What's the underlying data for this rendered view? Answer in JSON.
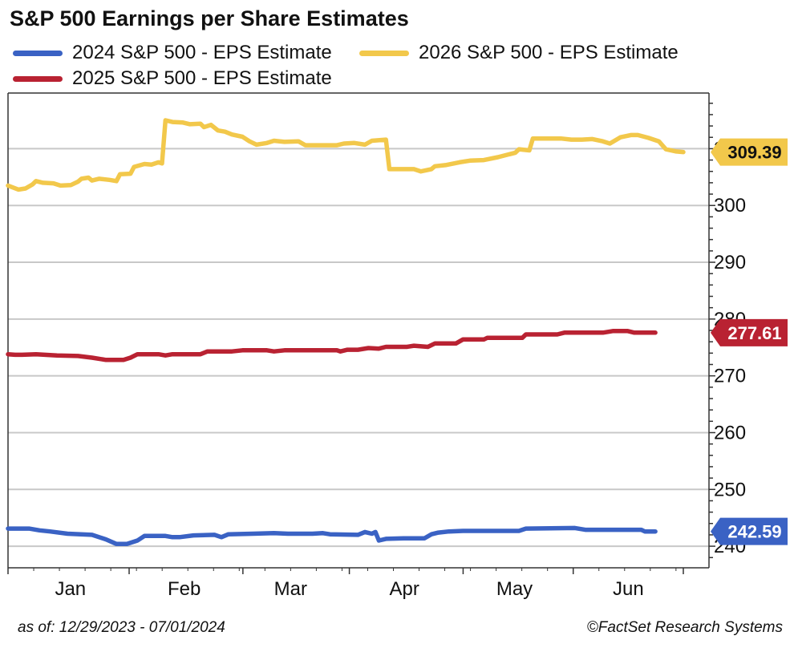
{
  "title": "S&P 500 Earnings per Share Estimates",
  "footer": {
    "date_range": "as of: 12/29/2023 - 07/01/2024",
    "source": "©FactSet Research Systems"
  },
  "colors": {
    "s2024": "#3a62c4",
    "s2025": "#b92232",
    "s2026": "#f2c84b",
    "grid": "#c8c8c8",
    "axis": "#333333"
  },
  "chart_data": {
    "type": "line",
    "title": "S&P 500 Earnings per Share Estimates",
    "xlabel": "",
    "ylabel": "",
    "x_range": [
      0,
      184
    ],
    "ylim": [
      236.2,
      319.8
    ],
    "yticks": [
      240,
      250,
      260,
      270,
      280,
      290,
      300,
      310
    ],
    "ytick_labels": [
      "240",
      "250",
      "260",
      "270",
      "280",
      "290",
      "300",
      "310"
    ],
    "xticks": [
      {
        "label": "Jan",
        "x": 17
      },
      {
        "label": "Feb",
        "x": 48
      },
      {
        "label": "Mar",
        "x": 77
      },
      {
        "label": "Apr",
        "x": 108
      },
      {
        "label": "May",
        "x": 138
      },
      {
        "label": "Jun",
        "x": 169
      }
    ],
    "month_boundaries": [
      0,
      33,
      64,
      93,
      124,
      154,
      184
    ],
    "grid": true,
    "series": [
      {
        "name": "2024 S&P 500 - EPS Estimate",
        "color_key": "s2024",
        "last_value": "242.59",
        "points": [
          [
            0,
            243.1
          ],
          [
            6,
            243.1
          ],
          [
            9,
            242.8
          ],
          [
            12,
            242.6
          ],
          [
            17,
            242.2
          ],
          [
            24,
            242.0
          ],
          [
            28,
            241.2
          ],
          [
            31,
            240.4
          ],
          [
            34,
            240.4
          ],
          [
            37,
            241.0
          ],
          [
            39,
            241.8
          ],
          [
            45,
            241.8
          ],
          [
            47,
            241.6
          ],
          [
            49,
            241.6
          ],
          [
            53,
            241.9
          ],
          [
            59,
            242.0
          ],
          [
            61,
            241.6
          ],
          [
            63,
            242.1
          ],
          [
            70,
            242.2
          ],
          [
            76,
            242.3
          ],
          [
            80,
            242.2
          ],
          [
            87,
            242.2
          ],
          [
            90,
            242.3
          ],
          [
            92,
            242.1
          ],
          [
            100,
            242.0
          ],
          [
            102,
            242.5
          ],
          [
            104,
            242.2
          ],
          [
            105,
            242.5
          ],
          [
            106,
            241.0
          ],
          [
            108,
            241.3
          ],
          [
            113,
            241.4
          ],
          [
            119,
            241.4
          ],
          [
            121,
            242.1
          ],
          [
            123,
            242.4
          ],
          [
            126,
            242.6
          ],
          [
            130,
            242.7
          ],
          [
            140,
            242.7
          ],
          [
            146,
            242.7
          ],
          [
            148,
            243.1
          ],
          [
            162,
            243.2
          ],
          [
            165,
            242.9
          ],
          [
            175,
            242.9
          ],
          [
            181,
            242.9
          ],
          [
            182,
            242.6
          ],
          [
            185,
            242.6
          ]
        ]
      },
      {
        "name": "2025 S&P 500 - EPS Estimate",
        "color_key": "s2025",
        "last_value": "277.61",
        "points": [
          [
            0,
            273.8
          ],
          [
            2,
            273.7
          ],
          [
            4,
            273.7
          ],
          [
            8,
            273.8
          ],
          [
            14,
            273.6
          ],
          [
            20,
            273.5
          ],
          [
            24,
            273.2
          ],
          [
            28,
            272.8
          ],
          [
            33,
            272.8
          ],
          [
            35,
            273.2
          ],
          [
            37,
            273.8
          ],
          [
            43,
            273.8
          ],
          [
            45,
            273.6
          ],
          [
            47,
            273.8
          ],
          [
            55,
            273.8
          ],
          [
            57,
            274.3
          ],
          [
            64,
            274.3
          ],
          [
            67,
            274.5
          ],
          [
            74,
            274.5
          ],
          [
            76,
            274.3
          ],
          [
            79,
            274.5
          ],
          [
            91,
            274.5
          ],
          [
            94,
            274.5
          ],
          [
            95,
            274.3
          ],
          [
            97,
            274.6
          ],
          [
            100,
            274.6
          ],
          [
            103,
            274.9
          ],
          [
            106,
            274.8
          ],
          [
            108,
            275.1
          ],
          [
            114,
            275.1
          ],
          [
            116,
            275.3
          ],
          [
            120,
            275.1
          ],
          [
            122,
            275.7
          ],
          [
            128,
            275.7
          ],
          [
            130,
            276.4
          ],
          [
            136,
            276.4
          ],
          [
            137,
            276.7
          ],
          [
            147,
            276.7
          ],
          [
            148,
            277.3
          ],
          [
            157,
            277.3
          ],
          [
            159,
            277.6
          ],
          [
            170,
            277.6
          ],
          [
            173,
            277.9
          ],
          [
            177,
            277.9
          ],
          [
            179,
            277.6
          ],
          [
            185,
            277.6
          ]
        ]
      },
      {
        "name": "2026 S&P 500 - EPS Estimate",
        "color_key": "s2026",
        "last_value": "309.39",
        "points": [
          [
            0,
            303.5
          ],
          [
            3,
            302.8
          ],
          [
            5,
            303.0
          ],
          [
            7,
            303.7
          ],
          [
            8,
            304.3
          ],
          [
            10,
            304.0
          ],
          [
            13,
            303.9
          ],
          [
            15,
            303.5
          ],
          [
            18,
            303.6
          ],
          [
            20,
            304.2
          ],
          [
            21,
            304.7
          ],
          [
            23,
            304.9
          ],
          [
            24,
            304.4
          ],
          [
            26,
            304.7
          ],
          [
            29,
            304.5
          ],
          [
            31,
            304.3
          ],
          [
            32,
            305.5
          ],
          [
            35,
            305.6
          ],
          [
            36,
            306.8
          ],
          [
            39,
            307.3
          ],
          [
            41,
            307.2
          ],
          [
            43,
            307.6
          ],
          [
            44,
            307.4
          ],
          [
            45,
            315.0
          ],
          [
            47,
            314.7
          ],
          [
            50,
            314.6
          ],
          [
            52,
            314.3
          ],
          [
            55,
            314.4
          ],
          [
            56,
            313.8
          ],
          [
            58,
            314.2
          ],
          [
            60,
            313.2
          ],
          [
            62,
            313.0
          ],
          [
            64,
            312.5
          ],
          [
            67,
            312.1
          ],
          [
            69,
            311.3
          ],
          [
            71,
            310.7
          ],
          [
            74,
            311.0
          ],
          [
            76,
            311.4
          ],
          [
            79,
            311.2
          ],
          [
            83,
            311.3
          ],
          [
            85,
            310.6
          ],
          [
            90,
            310.6
          ],
          [
            94,
            310.6
          ],
          [
            96,
            310.9
          ],
          [
            99,
            311.0
          ],
          [
            102,
            310.7
          ],
          [
            104,
            311.4
          ],
          [
            108,
            311.6
          ],
          [
            109,
            306.4
          ],
          [
            116,
            306.4
          ],
          [
            118,
            306.0
          ],
          [
            121,
            306.4
          ],
          [
            122,
            306.9
          ],
          [
            125,
            307.1
          ],
          [
            129,
            307.6
          ],
          [
            132,
            307.9
          ],
          [
            136,
            308.0
          ],
          [
            140,
            308.5
          ],
          [
            145,
            309.3
          ],
          [
            146,
            309.9
          ],
          [
            149,
            309.7
          ],
          [
            150,
            311.8
          ],
          [
            158,
            311.8
          ],
          [
            161,
            311.6
          ],
          [
            164,
            311.6
          ],
          [
            167,
            311.7
          ],
          [
            170,
            311.3
          ],
          [
            172,
            310.9
          ],
          [
            175,
            312.0
          ],
          [
            178,
            312.4
          ],
          [
            180,
            312.4
          ],
          [
            183,
            311.9
          ],
          [
            186,
            311.3
          ],
          [
            188,
            309.9
          ],
          [
            191,
            309.5
          ],
          [
            193,
            309.4
          ]
        ]
      }
    ]
  }
}
